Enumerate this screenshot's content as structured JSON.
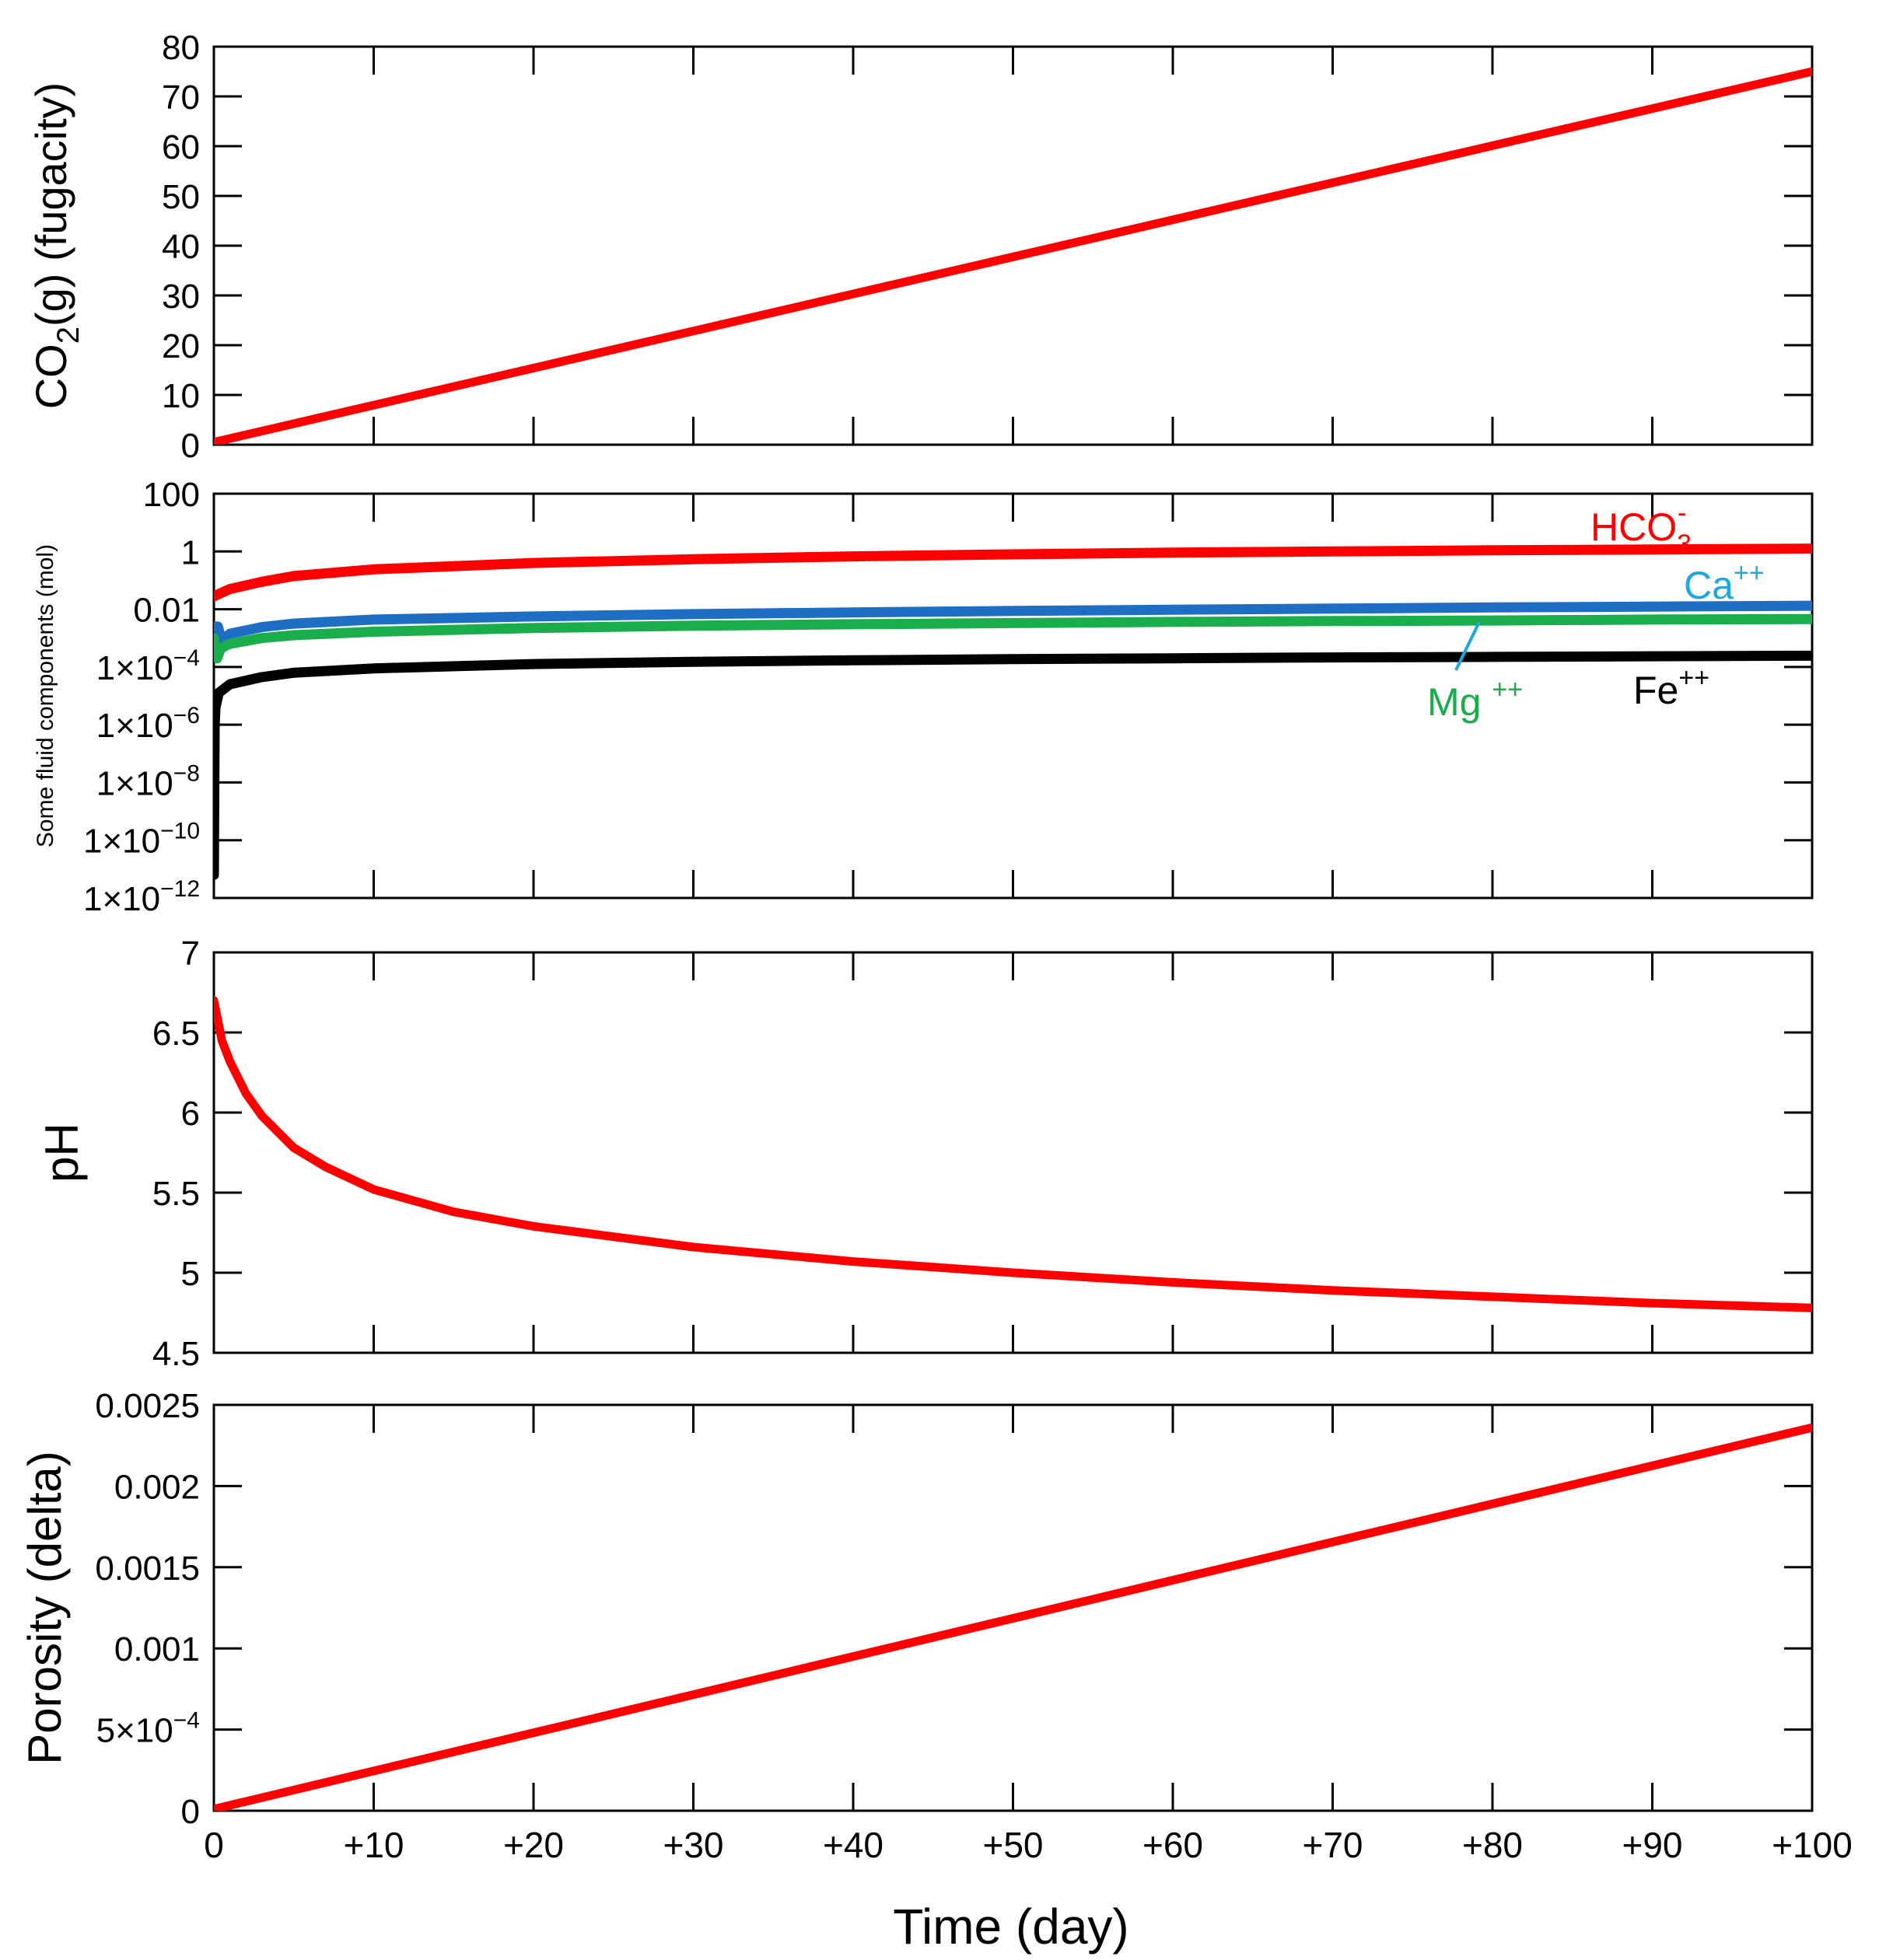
{
  "x_axis": {
    "label": "Time (day)",
    "range": [
      0,
      100
    ],
    "tick_labels": [
      "0",
      "+10",
      "+20",
      "+30",
      "+40",
      "+50",
      "+60",
      "+70",
      "+80",
      "+90",
      "+100"
    ]
  },
  "colors": {
    "red": "#ff0000",
    "blue": "#1e6fc4",
    "green": "#1aad4b",
    "black": "#000000",
    "ca_label": "#1ea8e0",
    "mg_label": "#1aad4b"
  },
  "chart_data": [
    {
      "type": "line",
      "title": "",
      "xlabel": "Time (day)",
      "ylabel": "CO2(g) (fugacity)",
      "ylabel_parts": {
        "pre": "CO",
        "sub": "2",
        "post": "(g) (fugacity)"
      },
      "ylim": [
        0,
        80
      ],
      "yticks": [
        0,
        10,
        20,
        30,
        40,
        50,
        60,
        70,
        80
      ],
      "ytick_labels": [
        "0",
        "10",
        "20",
        "30",
        "40",
        "50",
        "60",
        "70",
        "80"
      ],
      "series": [
        {
          "name": "CO2(g)",
          "color": "#ff0000",
          "x": [
            0,
            100
          ],
          "y": [
            0.5,
            75
          ]
        }
      ]
    },
    {
      "type": "line",
      "yscale": "log",
      "title": "",
      "xlabel": "Time (day)",
      "ylabel": "Some fluid components  (mol)",
      "ylim_log10": [
        -12,
        2
      ],
      "ytick_log10": [
        2,
        0,
        -2,
        -4,
        -6,
        -8,
        -10,
        -12
      ],
      "ytick_labels": [
        {
          "base": "100",
          "exp": ""
        },
        {
          "base": "1",
          "exp": ""
        },
        {
          "base": "0.01",
          "exp": ""
        },
        {
          "base": "1×10",
          "exp": "−4"
        },
        {
          "base": "1×10",
          "exp": "−6"
        },
        {
          "base": "1×10",
          "exp": "−8"
        },
        {
          "base": "1×10",
          "exp": "−10"
        },
        {
          "base": "1×10",
          "exp": "−12"
        }
      ],
      "series": [
        {
          "name": "HCO3-",
          "color": "#ff0000",
          "x": [
            0,
            1,
            3,
            5,
            10,
            20,
            30,
            40,
            50,
            60,
            70,
            80,
            90,
            100
          ],
          "log10y": [
            -1.55,
            -1.3,
            -1.05,
            -0.85,
            -0.62,
            -0.4,
            -0.27,
            -0.17,
            -0.1,
            -0.04,
            0.0,
            0.04,
            0.07,
            0.1
          ]
        },
        {
          "name": "Ca++",
          "color": "#1e6fc4",
          "x": [
            0,
            0.25,
            0.5,
            1,
            3,
            5,
            10,
            20,
            30,
            40,
            50,
            60,
            70,
            80,
            90,
            100
          ],
          "log10y": [
            -2.6,
            -2.6,
            -3.1,
            -2.85,
            -2.62,
            -2.5,
            -2.36,
            -2.25,
            -2.17,
            -2.11,
            -2.06,
            -2.02,
            -1.98,
            -1.94,
            -1.91,
            -1.88
          ]
        },
        {
          "name": "Mg++",
          "color": "#1aad4b",
          "x": [
            0,
            0.2,
            0.4,
            0.6,
            1,
            3,
            5,
            10,
            20,
            30,
            40,
            50,
            60,
            70,
            80,
            90,
            100
          ],
          "log10y": [
            -3.0,
            -3.7,
            -3.4,
            -3.3,
            -3.2,
            -3.0,
            -2.9,
            -2.78,
            -2.65,
            -2.57,
            -2.52,
            -2.48,
            -2.44,
            -2.41,
            -2.39,
            -2.36,
            -2.34
          ]
        },
        {
          "name": "Fe++",
          "color": "#000000",
          "x": [
            0,
            0.02,
            0.05,
            0.1,
            0.3,
            1,
            3,
            5,
            10,
            20,
            30,
            40,
            50,
            60,
            70,
            80,
            90,
            100
          ],
          "log10y": [
            -11.2,
            -9.0,
            -6.0,
            -5.4,
            -4.9,
            -4.6,
            -4.35,
            -4.2,
            -4.05,
            -3.9,
            -3.82,
            -3.77,
            -3.73,
            -3.7,
            -3.67,
            -3.65,
            -3.63,
            -3.61
          ]
        }
      ],
      "annotations": [
        {
          "id": "hco3",
          "base": "HCO",
          "sub": "3",
          "sup": "-"
        },
        {
          "id": "ca",
          "base": "Ca",
          "sup": "++"
        },
        {
          "id": "mg",
          "base": "Mg ",
          "sup": "++"
        },
        {
          "id": "fe",
          "base": "Fe",
          "sup": "++"
        }
      ]
    },
    {
      "type": "line",
      "title": "",
      "xlabel": "Time (day)",
      "ylabel": "pH",
      "ylim": [
        4.5,
        7
      ],
      "yticks": [
        4.5,
        5,
        5.5,
        6,
        6.5,
        7
      ],
      "ytick_labels": [
        "4.5",
        "5",
        "5.5",
        "6",
        "6.5",
        "7"
      ],
      "series": [
        {
          "name": "pH",
          "color": "#ff0000",
          "x": [
            0,
            0.5,
            1,
            2,
            3,
            5,
            7,
            10,
            15,
            20,
            30,
            40,
            50,
            60,
            70,
            80,
            90,
            100
          ],
          "y": [
            6.7,
            6.45,
            6.32,
            6.12,
            5.98,
            5.78,
            5.66,
            5.52,
            5.38,
            5.29,
            5.16,
            5.07,
            5.0,
            4.94,
            4.89,
            4.85,
            4.81,
            4.78
          ]
        }
      ]
    },
    {
      "type": "line",
      "title": "",
      "xlabel": "Time (day)",
      "ylabel": "Porosity (delta)",
      "ylim": [
        0,
        0.0025
      ],
      "yticks": [
        0,
        0.0005,
        0.001,
        0.0015,
        0.002,
        0.0025
      ],
      "ytick_labels": [
        {
          "base": "0",
          "exp": ""
        },
        {
          "base": "5×10",
          "exp": "−4"
        },
        {
          "base": "0.001",
          "exp": ""
        },
        {
          "base": "0.0015",
          "exp": ""
        },
        {
          "base": "0.002",
          "exp": ""
        },
        {
          "base": "0.0025",
          "exp": ""
        }
      ],
      "series": [
        {
          "name": "Porosity",
          "color": "#ff0000",
          "x": [
            0,
            100
          ],
          "y": [
            1e-05,
            0.00236
          ]
        }
      ]
    }
  ]
}
